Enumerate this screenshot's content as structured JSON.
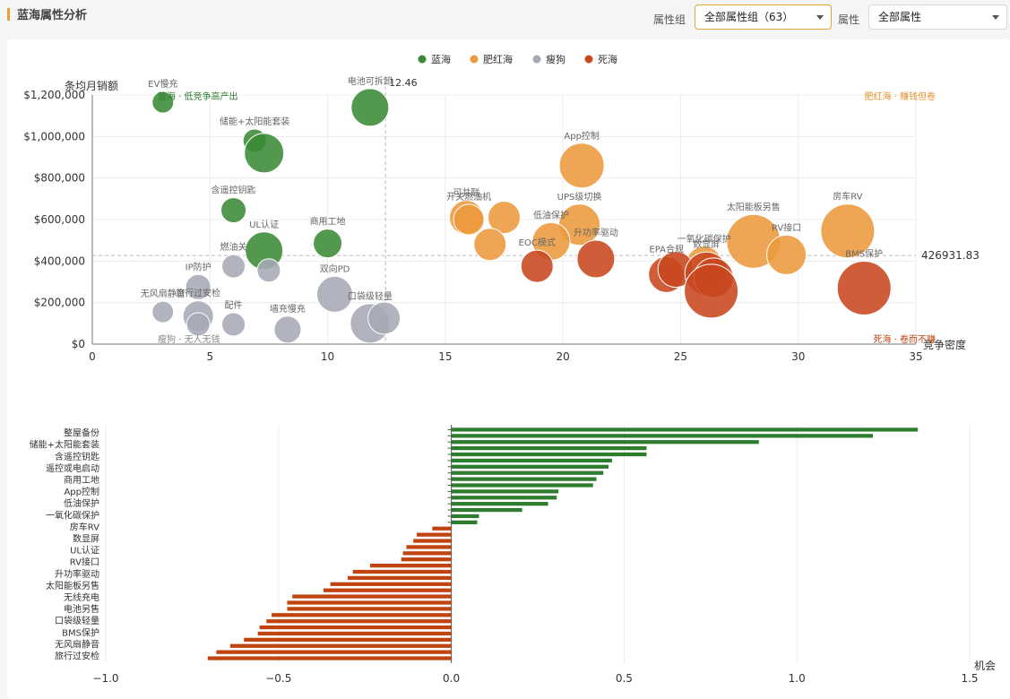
{
  "header": {
    "title": "蓝海属性分析",
    "group_label": "属性组",
    "group_value": "全部属性组（63）",
    "attr_label": "属性",
    "attr_value": "全部属性"
  },
  "chart_data": [
    {
      "type": "scatter",
      "xlabel": "竞争密度",
      "ylabel": "条均月销额",
      "xlim": [
        0,
        35
      ],
      "ylim": [
        0,
        1200000
      ],
      "xticks": [
        0,
        5,
        10,
        15,
        20,
        25,
        30,
        35
      ],
      "yticks": [
        0,
        200000,
        400000,
        600000,
        800000,
        1000000,
        1200000
      ],
      "ytick_labels": [
        "$0",
        "$200,000",
        "$400,000",
        "$600,000",
        "$800,000",
        "$1,000,000",
        "$1,200,000"
      ],
      "grid": true,
      "legend_position": "top",
      "ref_x": 12.46,
      "ref_x_label": "12.46",
      "ref_y": 426931.83,
      "ref_y_label": "426931.83",
      "quadrants": {
        "top_left": "蓝海 · 低竞争高产出",
        "top_right": "肥红海 · 赚钱但卷",
        "bottom_left": "瘦狗 · 无人无钱",
        "bottom_right": "死海 · 卷而不赚"
      },
      "series": [
        {
          "name": "蓝海",
          "color": "#3a8a35",
          "points": [
            {
              "label": "EV慢充",
              "x": 3.0,
              "y": 1165000,
              "size": 12
            },
            {
              "label": "电池可拆卸",
              "x": 11.8,
              "y": 1140000,
              "size": 21
            },
            {
              "label": "储能+太阳能套装",
              "x": 6.9,
              "y": 980000,
              "size": 13
            },
            {
              "label": "",
              "x": 7.3,
              "y": 920000,
              "size": 22
            },
            {
              "label": "含遥控钥匙",
              "x": 6.0,
              "y": 645000,
              "size": 14
            },
            {
              "label": "UL认证",
              "x": 7.3,
              "y": 450000,
              "size": 21
            },
            {
              "label": "商用工地",
              "x": 10.0,
              "y": 485000,
              "size": 16
            }
          ]
        },
        {
          "name": "肥红海",
          "color": "#ec9a3c",
          "points": [
            {
              "label": "App控制",
              "x": 20.8,
              "y": 860000,
              "size": 25
            },
            {
              "label": "可并联",
              "x": 15.9,
              "y": 610000,
              "size": 19
            },
            {
              "label": "开关燃油机",
              "x": 16.0,
              "y": 600000,
              "size": 17
            },
            {
              "label": "",
              "x": 17.5,
              "y": 610000,
              "size": 18
            },
            {
              "label": "UPS级切换",
              "x": 20.7,
              "y": 575000,
              "size": 23
            },
            {
              "label": "低油保护",
              "x": 19.5,
              "y": 495000,
              "size": 21
            },
            {
              "label": "",
              "x": 16.9,
              "y": 480000,
              "size": 18
            },
            {
              "label": "房车RV",
              "x": 32.1,
              "y": 545000,
              "size": 30
            },
            {
              "label": "太阳能板另售",
              "x": 28.1,
              "y": 495000,
              "size": 30
            },
            {
              "label": "一氧化碳保护",
              "x": 26.0,
              "y": 385000,
              "size": 20
            },
            {
              "label": "RV接口",
              "x": 29.5,
              "y": 430000,
              "size": 22
            }
          ]
        },
        {
          "name": "瘦狗",
          "color": "#a6a9b6",
          "points": [
            {
              "label": "燃油关",
              "x": 6.0,
              "y": 375000,
              "size": 13
            },
            {
              "label": "",
              "x": 7.5,
              "y": 355000,
              "size": 13
            },
            {
              "label": "IP防护",
              "x": 4.5,
              "y": 275000,
              "size": 14
            },
            {
              "label": "无风扇静音",
              "x": 3.0,
              "y": 155000,
              "size": 12
            },
            {
              "label": "旅行过安检",
              "x": 4.5,
              "y": 135000,
              "size": 17
            },
            {
              "label": "",
              "x": 4.5,
              "y": 95000,
              "size": 13
            },
            {
              "label": "配件",
              "x": 6.0,
              "y": 95000,
              "size": 13
            },
            {
              "label": "墙充慢充",
              "x": 8.3,
              "y": 70000,
              "size": 15
            },
            {
              "label": "双向PD",
              "x": 10.3,
              "y": 240000,
              "size": 20
            },
            {
              "label": "口袋级轻量",
              "x": 11.8,
              "y": 100000,
              "size": 22
            },
            {
              "label": "",
              "x": 12.4,
              "y": 125000,
              "size": 18
            }
          ]
        },
        {
          "name": "死海",
          "color": "#c8471f",
          "points": [
            {
              "label": "EOC模式",
              "x": 18.9,
              "y": 375000,
              "size": 18
            },
            {
              "label": "升功率驱动",
              "x": 21.4,
              "y": 410000,
              "size": 21
            },
            {
              "label": "EPA合规",
              "x": 24.4,
              "y": 335000,
              "size": 20
            },
            {
              "label": "",
              "x": 24.8,
              "y": 360000,
              "size": 20
            },
            {
              "label": "数显屏",
              "x": 26.1,
              "y": 340000,
              "size": 24
            },
            {
              "label": "",
              "x": 26.4,
              "y": 320000,
              "size": 22
            },
            {
              "label": "",
              "x": 26.3,
              "y": 255000,
              "size": 30
            },
            {
              "label": "BMS保护",
              "x": 32.8,
              "y": 270000,
              "size": 30
            }
          ]
        }
      ]
    },
    {
      "type": "bar",
      "orientation": "horizontal",
      "xlabel": "机会",
      "xlim": [
        -1.0,
        1.5
      ],
      "xticks": [
        -1.0,
        -0.5,
        0.0,
        0.5,
        1.0,
        1.5
      ],
      "xtick_labels": [
        "−1.0",
        "−0.5",
        "0.0",
        "0.5",
        "1.0",
        "1.5"
      ],
      "grid": true,
      "positive_color": "#2e7d2e",
      "negative_color": "#c0440f",
      "shown_labels": [
        "整屋备份",
        "储能+太阳能套装",
        "含遥控钥匙",
        "遥控或电启动",
        "商用工地",
        "App控制",
        "低油保护",
        "一氧化碳保护",
        "房车RV",
        "数显屏",
        "UL认证",
        "RV接口",
        "升功率驱动",
        "太阳能板另售",
        "无线充电",
        "电池另售",
        "口袋级轻量",
        "BMS保护",
        "无风扇静音",
        "旅行过安检"
      ],
      "values": [
        1.35,
        1.22,
        0.89,
        0.565,
        0.565,
        0.465,
        0.455,
        0.44,
        0.42,
        0.41,
        0.31,
        0.305,
        0.28,
        0.205,
        0.08,
        0.075,
        -0.055,
        -0.1,
        -0.11,
        -0.13,
        -0.14,
        -0.145,
        -0.235,
        -0.285,
        -0.3,
        -0.35,
        -0.37,
        -0.46,
        -0.475,
        -0.475,
        -0.52,
        -0.535,
        -0.555,
        -0.56,
        -0.6,
        -0.64,
        -0.68,
        -0.705
      ]
    }
  ]
}
